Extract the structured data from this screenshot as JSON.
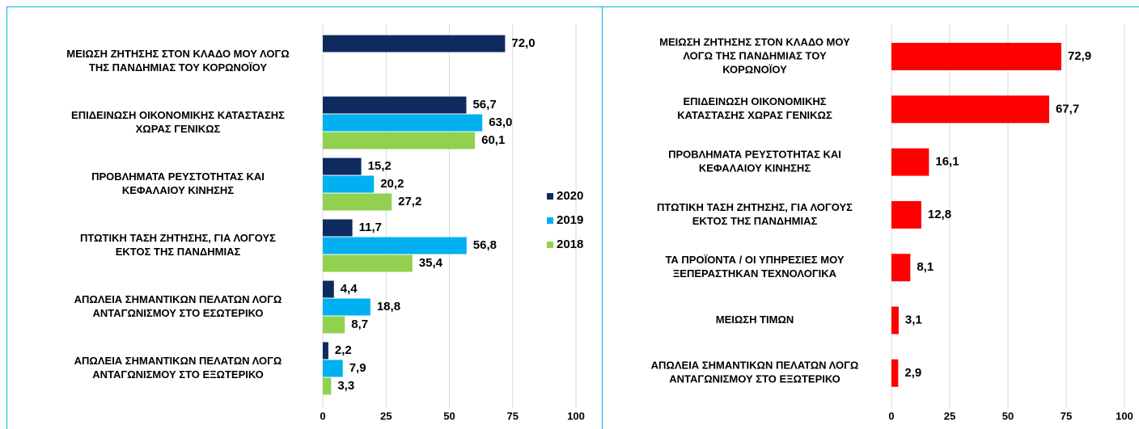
{
  "chart_data": [
    {
      "type": "bar",
      "orientation": "horizontal",
      "categories": [
        [
          "ΜΕΙΩΣΗ ΖΗΤΗΣΗΣ  ΣΤΟΝ ΚΛΑΔΟ ΜΟΥ ΛΟΓΩ",
          "ΤΗΣ ΠΑΝΔΗΜΙΑΣ  ΤΟΥ ΚΟΡΩΝΟΪΟΥ"
        ],
        [
          "ΕΠΙΔΕΙΝΩΣΗ ΟΙΚΟΝΟΜΙΚΗΣ ΚΑΤΑΣΤΑΣΗΣ",
          "ΧΩΡΑΣ ΓΕΝΙΚΩΣ"
        ],
        [
          "ΠΡΟΒΛΗΜΑΤΑ ΡΕΥΣΤΟΤΗΤΑΣ ΚΑΙ",
          "ΚΕΦΑΛΑΙΟΥ ΚΙΝΗΣΗΣ"
        ],
        [
          "ΠΤΩΤΙΚΗ ΤΑΣΗ ΖΗΤΗΣΗΣ, ΓΙΑ ΛΟΓΟΥΣ",
          "ΕΚΤΟΣ ΤΗΣ ΠΑΝΔΗΜΙΑΣ"
        ],
        [
          "ΑΠΩΛΕΙΑ ΣΗΜΑΝΤΙΚΩΝ ΠΕΛΑΤΩΝ ΛΟΓΩ",
          "ΑΝΤΑΓΩΝΙΣΜΟΥ ΣΤΟ ΕΣΩΤΕΡΙΚΟ"
        ],
        [
          "ΑΠΩΛΕΙΑ ΣΗΜΑΝΤΙΚΩΝ ΠΕΛΑΤΩΝ ΛΟΓΩ",
          "ΑΝΤΑΓΩΝΙΣΜΟΥ ΣΤΟ ΕΞΩΤΕΡΙΚΟ"
        ]
      ],
      "series": [
        {
          "name": "2020",
          "color": "#0e2a5f",
          "values": [
            72.0,
            56.7,
            15.2,
            11.7,
            4.4,
            2.2
          ],
          "value_labels": [
            "72,0",
            "56,7",
            "15,2",
            "11,7",
            "4,4",
            "2,2"
          ]
        },
        {
          "name": "2019",
          "color": "#00b0f0",
          "values": [
            null,
            63.0,
            20.2,
            56.8,
            18.8,
            7.9
          ],
          "value_labels": [
            null,
            "63,0",
            "20,2",
            "56,8",
            "18,8",
            "7,9"
          ]
        },
        {
          "name": "2018",
          "color": "#92d050",
          "values": [
            null,
            60.1,
            27.2,
            35.4,
            8.7,
            3.3
          ],
          "value_labels": [
            null,
            "60,1",
            "27,2",
            "35,4",
            "8,7",
            "3,3"
          ]
        }
      ],
      "xlim": [
        0,
        100
      ],
      "xticks": [
        0,
        25,
        50,
        75,
        100
      ],
      "grid": true,
      "legend": "right"
    },
    {
      "type": "bar",
      "orientation": "horizontal",
      "categories": [
        [
          "ΜΕΙΩΣΗ ΖΗΤΗΣΗΣ  ΣΤΟΝ ΚΛΑΔΟ ΜΟΥ",
          "ΛΟΓΩ ΤΗΣ ΠΑΝΔΗΜΙΑΣ  ΤΟΥ",
          "ΚΟΡΩΝΟΪΟΥ"
        ],
        [
          "ΕΠΙΔΕΙΝΩΣΗ ΟΙΚΟΝΟΜΙΚΗΣ",
          "ΚΑΤΑΣΤΑΣΗΣ  ΧΩΡΑΣ ΓΕΝΙΚΩΣ"
        ],
        [
          "ΠΡΟΒΛΗΜΑΤΑ ΡΕΥΣΤΟΤΗΤΑΣ ΚΑΙ",
          "ΚΕΦΑΛΑΙΟΥ ΚΙΝΗΣΗΣ"
        ],
        [
          "ΠΤΩΤΙΚΗ ΤΑΣΗ ΖΗΤΗΣΗΣ, ΓΙΑ ΛΟΓΟΥΣ",
          "ΕΚΤΟΣ ΤΗΣ ΠΑΝΔΗΜΙΑΣ"
        ],
        [
          "ΤΑ ΠΡΟΪΟΝΤΑ / ΟΙ ΥΠΗΡΕΣΙΕΣ ΜΟΥ",
          "ΞΕΠΕΡΑΣΤΗΚΑΝ ΤΕΧΝΟΛΟΓΙΚΑ"
        ],
        [
          "ΜΕΙΩΣΗ ΤΙΜΩΝ"
        ],
        [
          "ΑΠΩΛΕΙΑ ΣΗΜΑΝΤΙΚΩΝ ΠΕΛΑΤΩΝ ΛΟΓΩ",
          "ΑΝΤΑΓΩΝΙΣΜΟΥ ΣΤΟ ΕΞΩΤΕΡΙΚΟ"
        ]
      ],
      "color": "#ff0000",
      "values": [
        72.9,
        67.7,
        16.1,
        12.8,
        8.1,
        3.1,
        2.9
      ],
      "value_labels": [
        "72,9",
        "67,7",
        "16,1",
        "12,8",
        "8,1",
        "3,1",
        "2,9"
      ],
      "xlim": [
        0,
        100
      ],
      "xticks": [
        0,
        25,
        50,
        75,
        100
      ],
      "grid": true
    }
  ]
}
